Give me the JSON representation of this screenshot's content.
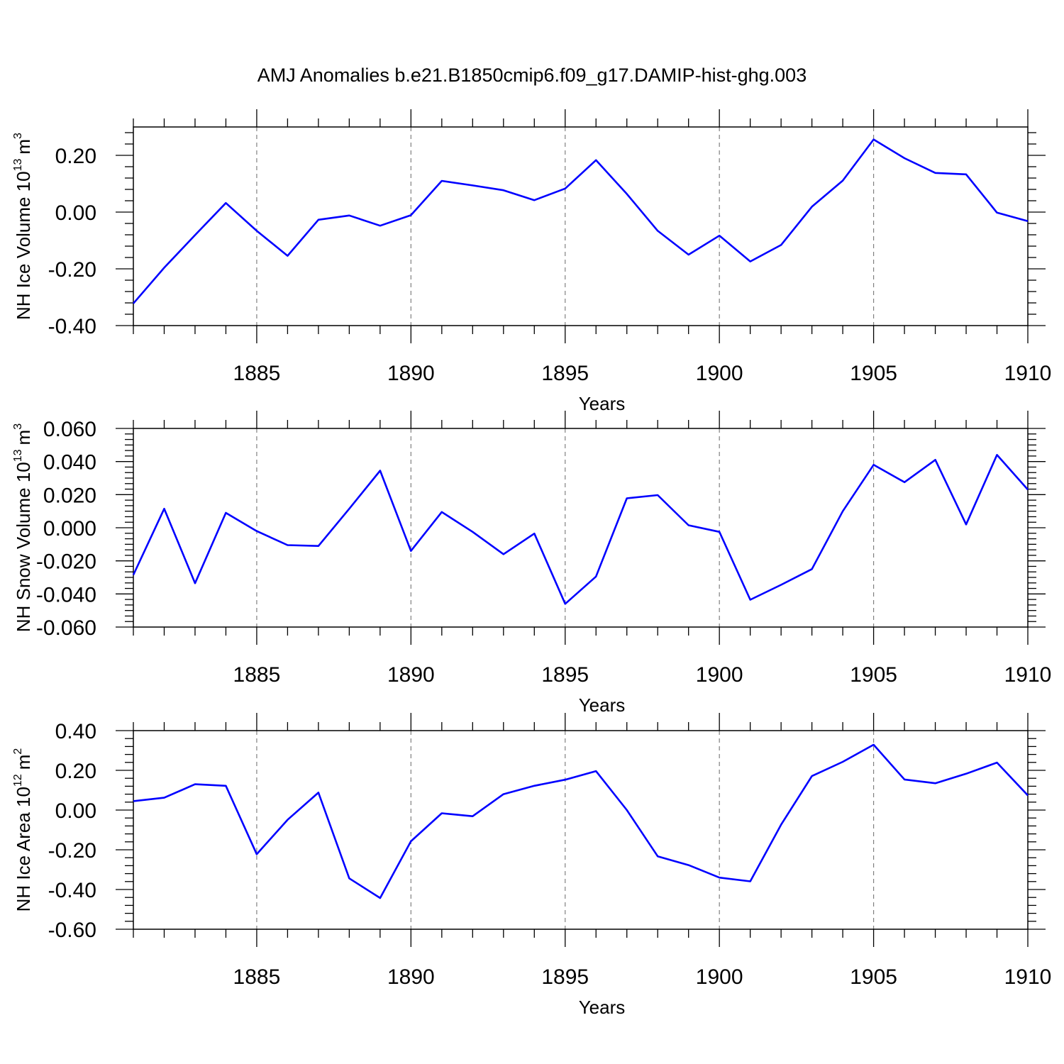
{
  "figure_title": "AMJ Anomalies b.e21.B1850cmip6.f09_g17.DAMIP-hist-ghg.003",
  "colors": {
    "line": "#0000ff",
    "grid": "#808080",
    "axis": "#000000"
  },
  "chart_data": [
    {
      "type": "line",
      "ylabel": "NH Ice Volume 10",
      "ylabel_sup": "13",
      "ylabel_unit": "m",
      "ylabel_unit_sup": "3",
      "xlabel": "Years",
      "xlim": [
        1881,
        1910
      ],
      "ylim": [
        -0.4,
        0.3
      ],
      "yticks": [
        -0.4,
        -0.2,
        0.0,
        0.2
      ],
      "ytick_labels": [
        "-0.40",
        "-0.20",
        "0.00",
        "0.20"
      ],
      "xticks": [
        1885,
        1890,
        1895,
        1900,
        1905,
        1910
      ],
      "xtick_labels": [
        "1885",
        "1890",
        "1895",
        "1900",
        "1905",
        "1910"
      ],
      "grid": "vertical dashed at major x ticks",
      "series": [
        {
          "name": "NH Ice Volume",
          "x": [
            1881,
            1882,
            1883,
            1884,
            1885,
            1886,
            1887,
            1888,
            1889,
            1890,
            1891,
            1892,
            1893,
            1894,
            1895,
            1896,
            1897,
            1898,
            1899,
            1900,
            1901,
            1902,
            1903,
            1904,
            1905,
            1906,
            1907,
            1908,
            1909,
            1910
          ],
          "values": [
            -0.322,
            -0.196,
            -0.081,
            0.032,
            -0.066,
            -0.154,
            -0.027,
            -0.012,
            -0.048,
            -0.011,
            0.11,
            0.094,
            0.077,
            0.042,
            0.083,
            0.183,
            0.064,
            -0.066,
            -0.15,
            -0.083,
            -0.174,
            -0.116,
            0.019,
            0.111,
            0.256,
            0.19,
            0.138,
            0.133,
            -0.002,
            -0.032
          ]
        }
      ]
    },
    {
      "type": "line",
      "ylabel": "NH Snow Volume 10",
      "ylabel_sup": "13",
      "ylabel_unit": "m",
      "ylabel_unit_sup": "3",
      "xlabel": "Years",
      "xlim": [
        1881,
        1910
      ],
      "ylim": [
        -0.06,
        0.06
      ],
      "yticks": [
        -0.06,
        -0.04,
        -0.02,
        0.0,
        0.02,
        0.04,
        0.06
      ],
      "ytick_labels": [
        "-0.060",
        "-0.040",
        "-0.020",
        "0.000",
        "0.020",
        "0.040",
        "0.060"
      ],
      "xticks": [
        1885,
        1890,
        1895,
        1900,
        1905,
        1910
      ],
      "xtick_labels": [
        "1885",
        "1890",
        "1895",
        "1900",
        "1905",
        "1910"
      ],
      "grid": "vertical dashed at major x ticks",
      "series": [
        {
          "name": "NH Snow Volume",
          "x": [
            1881,
            1882,
            1883,
            1884,
            1885,
            1886,
            1887,
            1888,
            1889,
            1890,
            1891,
            1892,
            1893,
            1894,
            1895,
            1896,
            1897,
            1898,
            1899,
            1900,
            1901,
            1902,
            1903,
            1904,
            1905,
            1906,
            1907,
            1908,
            1909,
            1910
          ],
          "values": [
            -0.0285,
            0.0115,
            -0.0335,
            0.009,
            -0.002,
            -0.0105,
            -0.011,
            0.0115,
            0.0345,
            -0.014,
            0.0095,
            -0.0025,
            -0.016,
            -0.0035,
            -0.046,
            -0.0295,
            0.0178,
            0.0197,
            0.0015,
            -0.0025,
            -0.0435,
            -0.0345,
            -0.025,
            0.01,
            0.038,
            0.0275,
            0.041,
            0.002,
            0.044,
            0.023
          ]
        }
      ]
    },
    {
      "type": "line",
      "ylabel": "NH Ice Area 10",
      "ylabel_sup": "12",
      "ylabel_unit": "m",
      "ylabel_unit_sup": "2",
      "xlabel": "Years",
      "xlim": [
        1881,
        1910
      ],
      "ylim": [
        -0.6,
        0.4
      ],
      "yticks": [
        -0.6,
        -0.4,
        -0.2,
        0.0,
        0.2,
        0.4
      ],
      "ytick_labels": [
        "-0.60",
        "-0.40",
        "-0.20",
        "0.00",
        "0.20",
        "0.40"
      ],
      "xticks": [
        1885,
        1890,
        1895,
        1900,
        1905,
        1910
      ],
      "xtick_labels": [
        "1885",
        "1890",
        "1895",
        "1900",
        "1905",
        "1910"
      ],
      "grid": "vertical dashed at major x ticks",
      "series": [
        {
          "name": "NH Ice Area",
          "x": [
            1881,
            1882,
            1883,
            1884,
            1885,
            1886,
            1887,
            1888,
            1889,
            1890,
            1891,
            1892,
            1893,
            1894,
            1895,
            1896,
            1897,
            1898,
            1899,
            1900,
            1901,
            1902,
            1903,
            1904,
            1905,
            1906,
            1907,
            1908,
            1909,
            1910
          ],
          "values": [
            0.045,
            0.062,
            0.13,
            0.122,
            -0.222,
            -0.049,
            0.088,
            -0.344,
            -0.443,
            -0.157,
            -0.016,
            -0.031,
            0.08,
            0.122,
            0.153,
            0.196,
            0.0,
            -0.233,
            -0.277,
            -0.34,
            -0.359,
            -0.074,
            0.171,
            0.243,
            0.329,
            0.154,
            0.135,
            0.183,
            0.239,
            0.074
          ]
        }
      ]
    }
  ]
}
